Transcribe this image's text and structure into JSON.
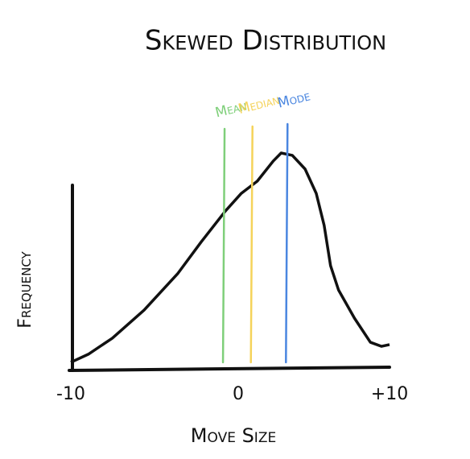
{
  "chart_data": {
    "type": "line",
    "title": "Skewed Distribution",
    "x_label": "Move Size",
    "y_label": "Frequency",
    "x": [
      -10,
      -8.9,
      -7.4,
      -5.4,
      -3.3,
      -1.8,
      -0.3,
      0.7,
      1.7,
      2.7,
      3.2,
      3.9,
      4.7,
      5.4,
      5.9,
      6.3,
      6.8,
      7.8,
      8.8,
      9.5,
      10
    ],
    "series": [
      {
        "color": "#111111",
        "values": [
          1.9,
          5.7,
          13.2,
          26.4,
          43.4,
          58.5,
          72.8,
          81.1,
          86.8,
          96.2,
          100,
          98.9,
          92.5,
          81.1,
          66,
          47.2,
          35.8,
          22.6,
          11.3,
          9.4,
          10.2
        ]
      }
    ],
    "markers": [
      {
        "label": "Mean",
        "x": -0.35,
        "color": "#7fcf7a"
      },
      {
        "label": "Median",
        "x": 1.4,
        "color": "#f5d35a"
      },
      {
        "label": "Mode",
        "x": 3.6,
        "color": "#4a86e0"
      }
    ],
    "xlim": [
      -10,
      10
    ],
    "ylim": [
      0,
      100
    ],
    "xticks": [
      -10,
      0,
      {
        "value": 10,
        "label": "+10"
      }
    ]
  }
}
